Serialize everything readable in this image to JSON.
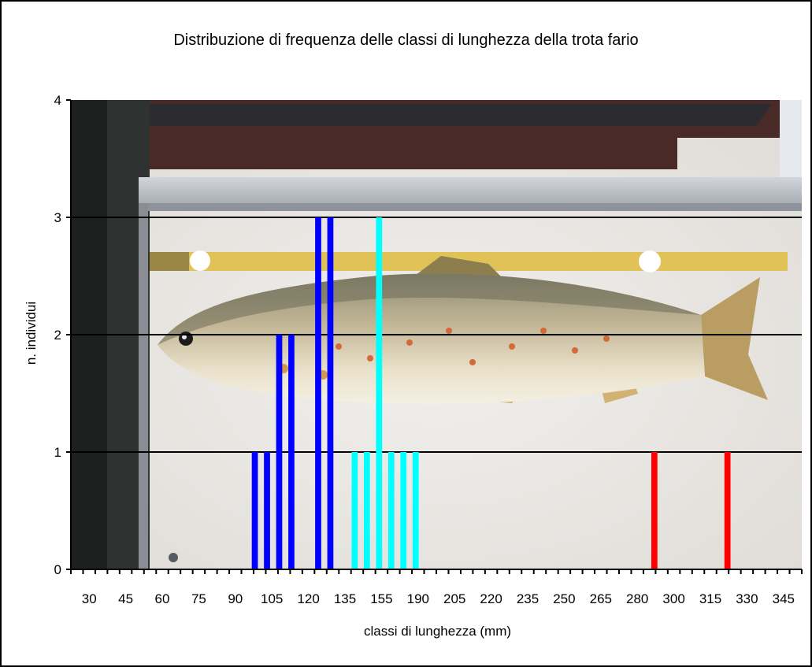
{
  "chart_data": {
    "type": "bar",
    "title": "Distribuzione di frequenza delle classi di lunghezza della trota fario",
    "xlabel": "classi di lunghezza (mm)",
    "ylabel": "n. individui",
    "ylim": [
      0,
      4
    ],
    "yticks": [
      0,
      1,
      2,
      3,
      4
    ],
    "grid": true,
    "background_photo": "brown-trout-on-measuring-ruler",
    "x_tick_labels": [
      "30",
      "45",
      "60",
      "75",
      "90",
      "105",
      "120",
      "135",
      "155",
      "190",
      "205",
      "220",
      "235",
      "250",
      "265",
      "280",
      "300",
      "315",
      "330",
      "345"
    ],
    "bars": [
      {
        "position": 98,
        "value": 1,
        "color": "#0000ff"
      },
      {
        "position": 103,
        "value": 1,
        "color": "#0000ff"
      },
      {
        "position": 108,
        "value": 2,
        "color": "#0000ff"
      },
      {
        "position": 113,
        "value": 2,
        "color": "#0000ff"
      },
      {
        "position": 124,
        "value": 3,
        "color": "#0000ff"
      },
      {
        "position": 129,
        "value": 3,
        "color": "#0000ff"
      },
      {
        "position": 139,
        "value": 1,
        "color": "#00ffff"
      },
      {
        "position": 144,
        "value": 1,
        "color": "#00ffff"
      },
      {
        "position": 149,
        "value": 3,
        "color": "#00ffff"
      },
      {
        "position": 154,
        "value": 1,
        "color": "#00ffff"
      },
      {
        "position": 159,
        "value": 1,
        "color": "#00ffff"
      },
      {
        "position": 164,
        "value": 1,
        "color": "#00ffff"
      },
      {
        "position": 262,
        "value": 1,
        "color": "#ff0000"
      },
      {
        "position": 292,
        "value": 1,
        "color": "#ff0000"
      }
    ]
  }
}
